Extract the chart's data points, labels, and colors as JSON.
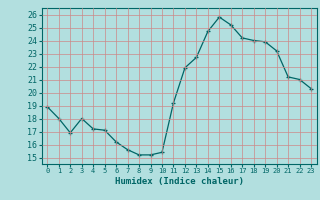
{
  "xlabel": "Humidex (Indice chaleur)",
  "x_values": [
    0,
    1,
    2,
    3,
    4,
    5,
    6,
    7,
    8,
    9,
    10,
    11,
    12,
    13,
    14,
    15,
    16,
    17,
    18,
    19,
    20,
    21,
    22,
    23
  ],
  "y_values": [
    18.9,
    18.0,
    16.9,
    18.0,
    17.2,
    17.1,
    16.2,
    15.6,
    15.2,
    15.2,
    15.4,
    19.2,
    21.9,
    22.7,
    24.7,
    25.8,
    25.2,
    24.2,
    24.0,
    23.9,
    23.2,
    21.2,
    21.0,
    20.3
  ],
  "ylim": [
    14.5,
    26.5
  ],
  "xlim": [
    -0.5,
    23.5
  ],
  "yticks": [
    15,
    16,
    17,
    18,
    19,
    20,
    21,
    22,
    23,
    24,
    25,
    26
  ],
  "xticks": [
    0,
    1,
    2,
    3,
    4,
    5,
    6,
    7,
    8,
    9,
    10,
    11,
    12,
    13,
    14,
    15,
    16,
    17,
    18,
    19,
    20,
    21,
    22,
    23
  ],
  "line_color": "#006666",
  "marker_color": "#006666",
  "bg_color": "#b2dfdf",
  "grid_color": "#cc8888",
  "axis_color": "#006666",
  "tick_label_color": "#006666",
  "xlabel_color": "#006666",
  "font_name": "monospace"
}
